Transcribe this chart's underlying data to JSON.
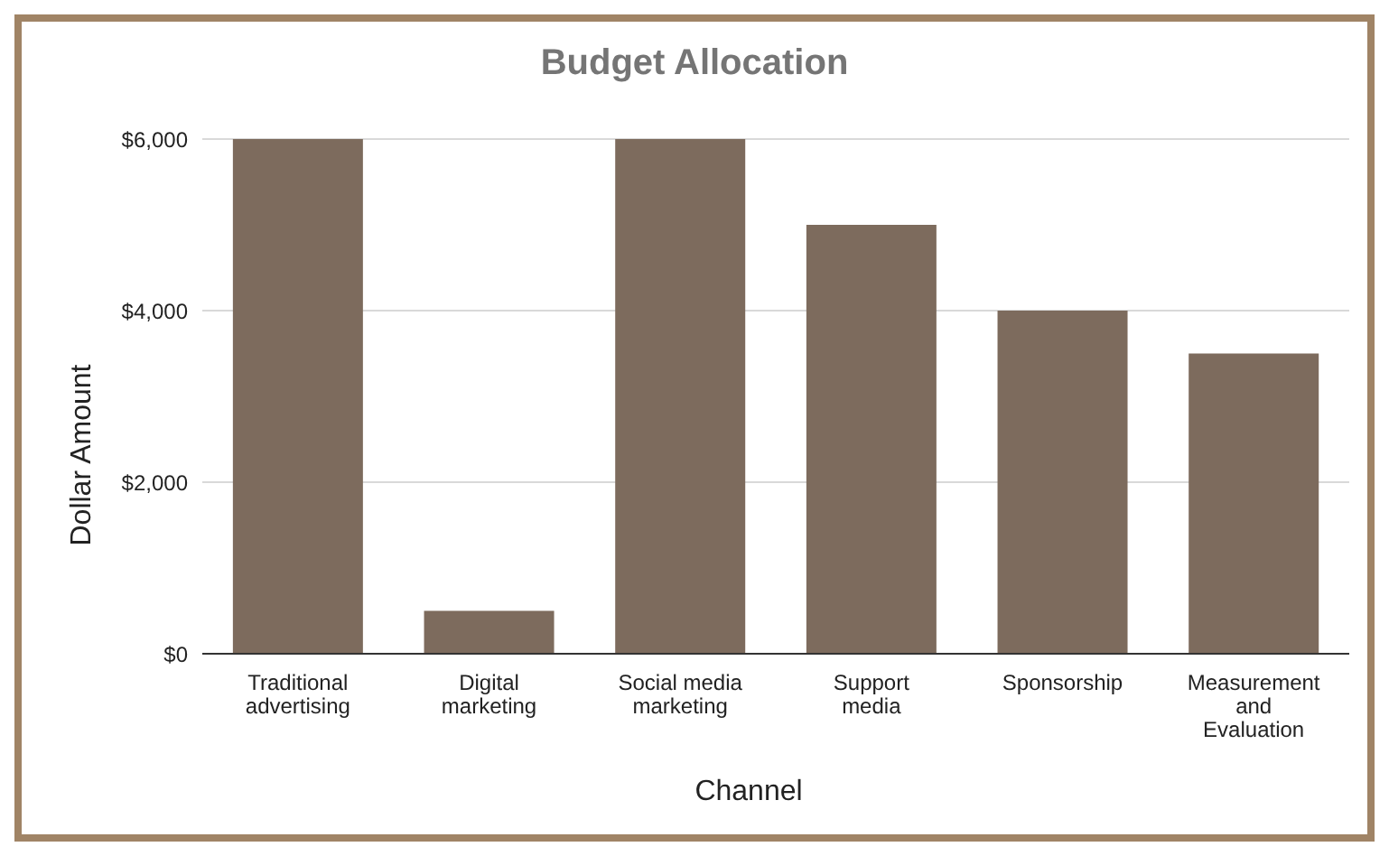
{
  "chart_data": {
    "type": "bar",
    "title": "Budget Allocation",
    "xlabel": "Channel",
    "ylabel": "Dollar Amount",
    "categories": [
      "Traditional advertising",
      "Digital marketing",
      "Social media marketing",
      "Support media",
      "Sponsorship",
      "Measurement and Evaluation"
    ],
    "values": [
      6000,
      500,
      6000,
      5000,
      4000,
      3500
    ],
    "color": "#7d6b5d",
    "ylim": [
      0,
      6000
    ],
    "yticks": [
      {
        "value": 0,
        "label": "$0"
      },
      {
        "value": 2000,
        "label": "$2,000"
      },
      {
        "value": 4000,
        "label": "$4,000"
      },
      {
        "value": 6000,
        "label": "$6,000"
      }
    ],
    "grid": "y"
  }
}
